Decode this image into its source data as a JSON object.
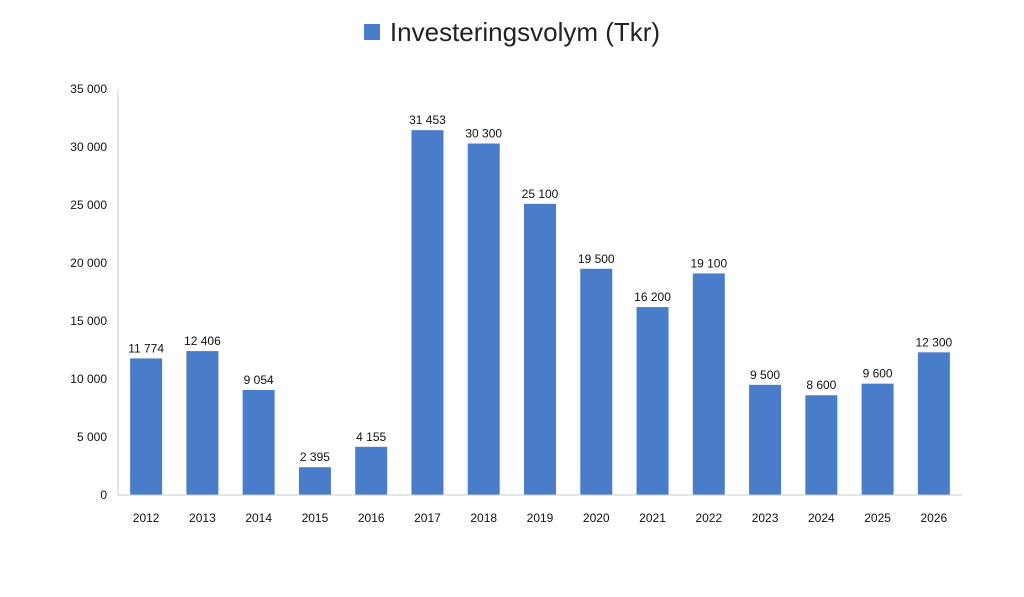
{
  "chart_data": {
    "type": "bar",
    "title": "",
    "xlabel": "",
    "ylabel": "",
    "ylim": [
      0,
      35000
    ],
    "y_ticks": [
      {
        "value": 0,
        "label": "0"
      },
      {
        "value": 5000,
        "label": "5 000"
      },
      {
        "value": 10000,
        "label": "10 000"
      },
      {
        "value": 15000,
        "label": "15 000"
      },
      {
        "value": 20000,
        "label": "20 000"
      },
      {
        "value": 25000,
        "label": "25 000"
      },
      {
        "value": 30000,
        "label": "30 000"
      },
      {
        "value": 35000,
        "label": "35 000"
      }
    ],
    "grid": false,
    "legend_position": "top-center",
    "categories": [
      "2012",
      "2013",
      "2014",
      "2015",
      "2016",
      "2017",
      "2018",
      "2019",
      "2020",
      "2021",
      "2022",
      "2023",
      "2024",
      "2025",
      "2026"
    ],
    "series": [
      {
        "name": "Investeringsvolym (Tkr)",
        "color": "#4a7dc9",
        "values": [
          11774,
          12406,
          9054,
          2395,
          4155,
          31453,
          30300,
          25100,
          19500,
          16200,
          19100,
          9500,
          8600,
          9600,
          12300
        ],
        "labels": [
          "11 774",
          "12 406",
          "9 054",
          "2 395",
          "4 155",
          "31 453",
          "30 300",
          "25 100",
          "19 500",
          "16 200",
          "19 100",
          "9 500",
          "8 600",
          "9 600",
          "12 300"
        ]
      }
    ]
  }
}
